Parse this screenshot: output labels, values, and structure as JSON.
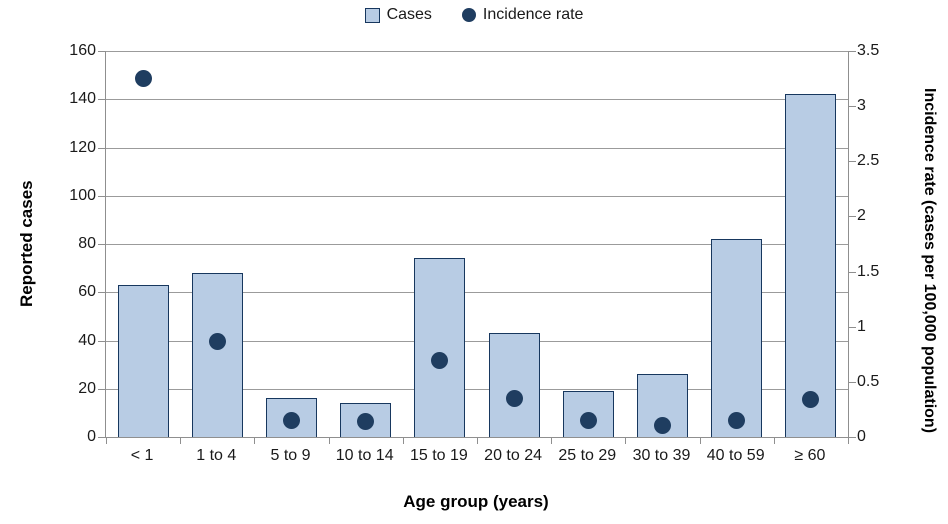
{
  "legend": {
    "items": [
      {
        "label": "Cases",
        "marker": "square"
      },
      {
        "label": "Incidence rate",
        "marker": "circle"
      }
    ]
  },
  "chart_data": {
    "type": "bar+scatter",
    "categories": [
      "< 1",
      "1 to 4",
      "5 to 9",
      "10 to 14",
      "15 to 19",
      "20 to 24",
      "25 to 29",
      "30 to 39",
      "40 to 59",
      "≥ 60"
    ],
    "series": [
      {
        "name": "Cases",
        "type": "bar",
        "axis": "left",
        "values": [
          63,
          68,
          16,
          14,
          74,
          43,
          19,
          26,
          82,
          142
        ]
      },
      {
        "name": "Incidence rate",
        "type": "scatter",
        "axis": "right",
        "values": [
          3.25,
          0.87,
          0.15,
          0.14,
          0.69,
          0.35,
          0.15,
          0.1,
          0.15,
          0.34
        ]
      }
    ],
    "xlabel": "Age group (years)",
    "ylabel_left": "Reported cases",
    "ylabel_right": "Incidence rate (cases per 100,000 population)",
    "y_left": {
      "min": 0,
      "max": 160,
      "step": 20,
      "ticks": [
        "0",
        "20",
        "40",
        "60",
        "80",
        "100",
        "120",
        "140",
        "160"
      ]
    },
    "y_right": {
      "min": 0,
      "max": 3.5,
      "step": 0.5,
      "ticks": [
        "0",
        "0.5",
        "1",
        "1.5",
        "2",
        "2.5",
        "3",
        "3.5"
      ]
    },
    "grid": true,
    "legend_position": "top-center",
    "colors": {
      "bar_fill": "#b8cce4",
      "bar_border": "#17375e",
      "dot": "#1f3d60",
      "gridline": "#9b9b9b",
      "axis": "#8f8f8f"
    }
  }
}
